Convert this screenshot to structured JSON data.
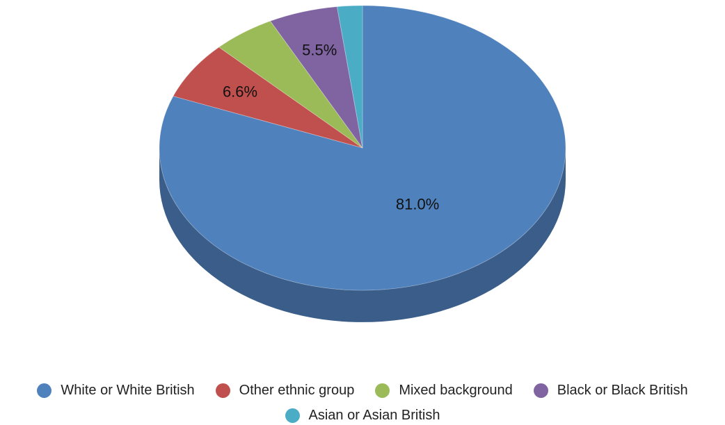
{
  "chart_data": {
    "type": "pie",
    "title": "",
    "legend_position": "bottom",
    "style": "3d",
    "slices": [
      {
        "name": "White or White British",
        "value": 81.0,
        "label": "81.0%",
        "color": "#4F81BD",
        "side_color": "#3A5E89"
      },
      {
        "name": "Other ethnic group",
        "value": 6.6,
        "label": "6.6%",
        "color": "#C0504D",
        "side_color": "#8C3A38"
      },
      {
        "name": "Mixed background",
        "value": 5.0,
        "label": "",
        "color": "#9BBB59",
        "side_color": "#718941"
      },
      {
        "name": "Black or Black British",
        "value": 5.5,
        "label": "5.5%",
        "color": "#8064A2",
        "side_color": "#5D4976"
      },
      {
        "name": "Asian or Asian British",
        "value": 2.0,
        "label": "",
        "color": "#4BACC6",
        "side_color": "#367D90"
      }
    ]
  }
}
